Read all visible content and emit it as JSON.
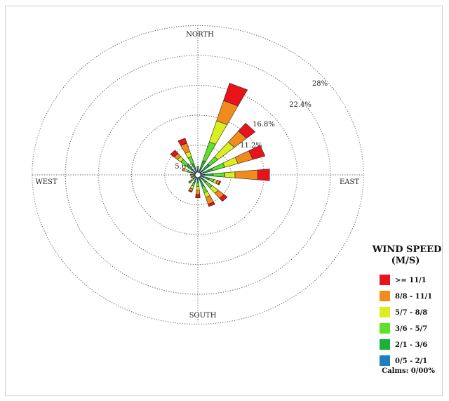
{
  "chart_data": {
    "type": "windrose",
    "compass": {
      "north": "NORTH",
      "south": "SOUTH",
      "east": "EAST",
      "west": "WEST"
    },
    "ring_percent": [
      5.6,
      11.2,
      16.8,
      22.4,
      28
    ],
    "ring_labels": [
      "5.6%",
      "11.2%",
      "16.8%",
      "22.4%",
      "28%"
    ],
    "legend": {
      "title_line1": "WIND SPEED",
      "title_line2": "(M/S)",
      "bins": [
        {
          "label": ">= 11/1",
          "color": "#e8131b"
        },
        {
          "label": "8/8 - 11/1",
          "color": "#f28b1b"
        },
        {
          "label": "5/7 - 8/8",
          "color": "#d9f01e"
        },
        {
          "label": "3/6 - 5/7",
          "color": "#5fe02a"
        },
        {
          "label": "2/1 - 3/6",
          "color": "#19b23a"
        },
        {
          "label": "0/5 - 2/1",
          "color": "#1d7fc0"
        }
      ],
      "calms": "Calms: 0/00%"
    },
    "directions": [
      {
        "angle": 22.5,
        "segments": [
          0.3,
          1.2,
          1.6,
          4.1,
          4.6,
          4.4,
          3.8
        ]
      },
      {
        "angle": 45,
        "segments": [
          0.3,
          1.0,
          1.6,
          2.0,
          4.0,
          3.0,
          2.1
        ]
      },
      {
        "angle": 67.5,
        "segments": [
          0.3,
          1.0,
          1.6,
          2.4,
          2.6,
          2.9,
          2.4
        ]
      },
      {
        "angle": 90,
        "segments": [
          0.3,
          1.0,
          1.6,
          2.2,
          1.9,
          4.3,
          2.2
        ]
      },
      {
        "angle": 112.5,
        "segments": [
          0.3,
          0.8,
          1.2,
          0.9,
          0.6,
          0.5,
          0.2
        ]
      },
      {
        "angle": 135,
        "segments": [
          0.3,
          0.9,
          0.9,
          1.4,
          1.5,
          1.4,
          0.8
        ]
      },
      {
        "angle": 157.5,
        "segments": [
          0.3,
          1.0,
          1.2,
          1.4,
          1.0,
          1.5,
          0.5
        ]
      },
      {
        "angle": 180,
        "segments": [
          0.3,
          0.6,
          0.8,
          0.7,
          0.8,
          0.9,
          0.7
        ]
      },
      {
        "angle": 202.5,
        "segments": [
          0.3,
          0.8,
          0.7,
          0.7,
          0.6,
          0.5,
          0.2
        ]
      },
      {
        "angle": 225,
        "segments": [
          0.3,
          0.4,
          0.5,
          0.5,
          0.3,
          0.3,
          0
        ]
      },
      {
        "angle": 247.5,
        "segments": [
          0.3,
          0.2,
          0.3,
          0.3,
          0.2,
          0.1,
          0
        ]
      },
      {
        "angle": 270,
        "segments": [
          0.3,
          0.2,
          0.3,
          0.3,
          0.2,
          0.1,
          0
        ]
      },
      {
        "angle": 292.5,
        "segments": [
          0.3,
          0.4,
          0.6,
          0.7,
          0.8,
          0.3,
          0
        ]
      },
      {
        "angle": 315,
        "segments": [
          0.3,
          1.2,
          1.3,
          1.4,
          0.8,
          0.8,
          0.9
        ]
      },
      {
        "angle": 337.5,
        "segments": [
          0.3,
          1.0,
          1.2,
          1.5,
          1.1,
          1.8,
          1.1
        ]
      },
      {
        "angle": 0,
        "segments": [
          0.3,
          0.4,
          0.3,
          0.3,
          0.3,
          0.2,
          0
        ]
      }
    ]
  }
}
